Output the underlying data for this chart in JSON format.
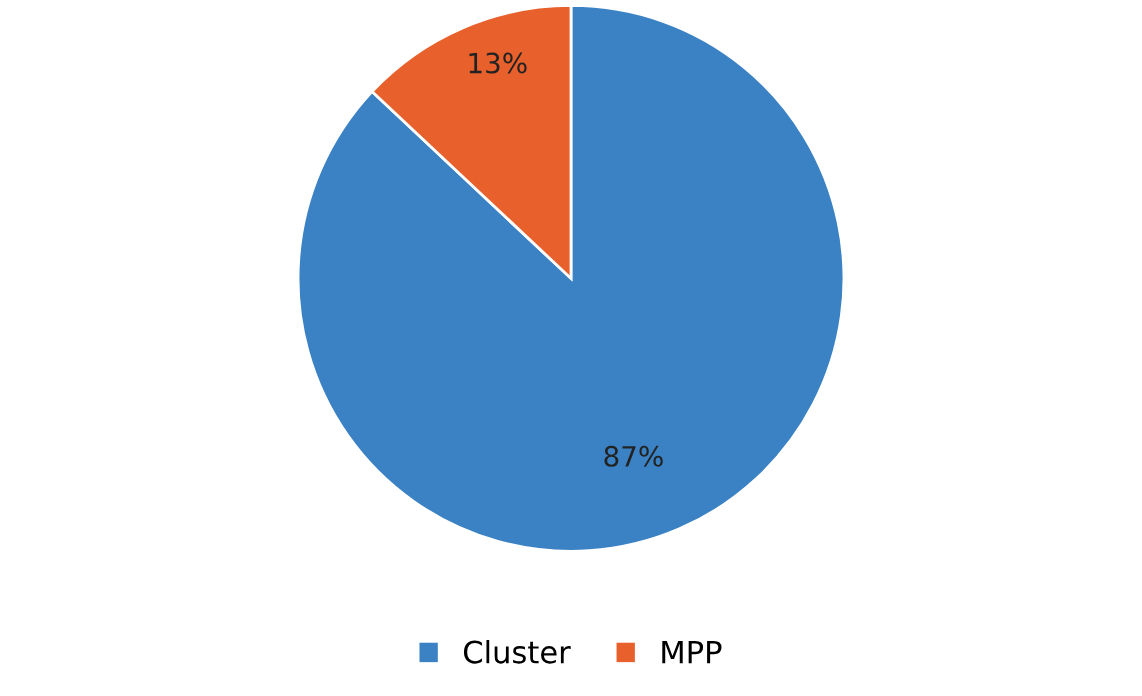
{
  "chart_data": {
    "type": "pie",
    "categories": [
      "Cluster",
      "MPP"
    ],
    "values": [
      87,
      13
    ],
    "colors": [
      "#3b82c4",
      "#e8602c"
    ],
    "value_labels": [
      "87%",
      "13%"
    ],
    "legend": "bottom"
  }
}
